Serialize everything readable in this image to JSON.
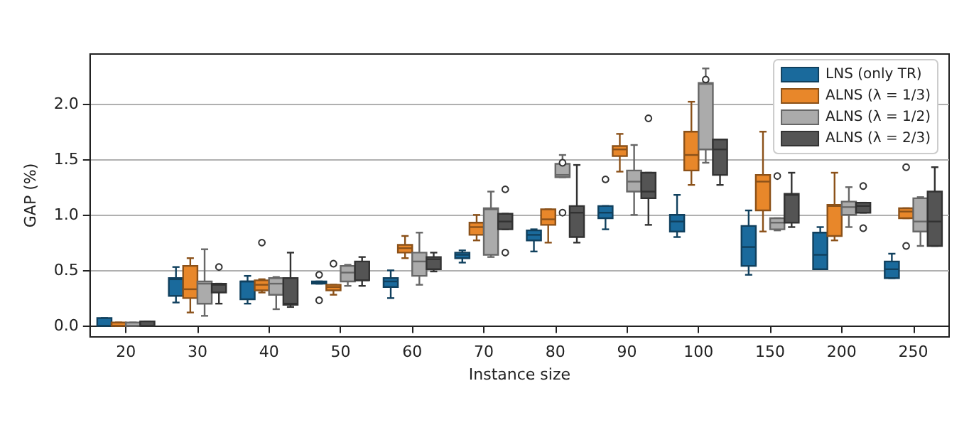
{
  "chart_data": {
    "type": "box",
    "xlabel": "Instance size",
    "ylabel": "GAP (%)",
    "categories": [
      "20",
      "30",
      "40",
      "50",
      "60",
      "70",
      "80",
      "90",
      "100",
      "150",
      "200",
      "250"
    ],
    "ylim": [
      -0.1,
      2.45
    ],
    "yticks": [
      {
        "value": 0,
        "label": "0.0"
      },
      0.5,
      {
        "value": 1,
        "label": "1.0"
      },
      1.5,
      {
        "value": 2,
        "label": "2.0"
      }
    ],
    "grid": "y",
    "legend": "top right",
    "series": [
      {
        "name": "LNS (only TR)",
        "color": "#1a6a9c",
        "boxes": [
          {
            "low": 0,
            "q1": 0,
            "median": 0,
            "q3": 0.07,
            "high": 0.07
          },
          {
            "low": 0.21,
            "q1": 0.27,
            "median": 0.42,
            "q3": 0.43,
            "high": 0.53
          },
          {
            "low": 0.2,
            "q1": 0.24,
            "median": 0.4,
            "q3": 0.4,
            "high": 0.45
          },
          {
            "low": 0.38,
            "q1": 0.38,
            "median": 0.39,
            "q3": 0.4,
            "high": 0.4,
            "outliers": [
              0.46,
              0.23
            ]
          },
          {
            "low": 0.25,
            "q1": 0.35,
            "median": 0.4,
            "q3": 0.43,
            "high": 0.5
          },
          {
            "low": 0.57,
            "q1": 0.61,
            "median": 0.64,
            "q3": 0.66,
            "high": 0.68
          },
          {
            "low": 0.67,
            "q1": 0.77,
            "median": 0.82,
            "q3": 0.86,
            "high": 0.87
          },
          {
            "low": 0.87,
            "q1": 0.97,
            "median": 1.02,
            "q3": 1.08,
            "high": 1.08,
            "outliers": [
              1.32
            ]
          },
          {
            "low": 0.8,
            "q1": 0.85,
            "median": 0.94,
            "q3": 1.0,
            "high": 1.18
          },
          {
            "low": 0.46,
            "q1": 0.54,
            "median": 0.71,
            "q3": 0.9,
            "high": 1.04
          },
          {
            "low": 0.51,
            "q1": 0.51,
            "median": 0.64,
            "q3": 0.84,
            "high": 0.89
          },
          {
            "low": 0.43,
            "q1": 0.43,
            "median": 0.51,
            "q3": 0.58,
            "high": 0.65
          }
        ]
      },
      {
        "name": "ALNS (λ = 1/3)",
        "color": "#e8872a",
        "boxes": [
          {
            "low": 0,
            "q1": 0,
            "median": 0,
            "q3": 0.03,
            "high": 0.03
          },
          {
            "low": 0.12,
            "q1": 0.25,
            "median": 0.33,
            "q3": 0.54,
            "high": 0.61
          },
          {
            "low": 0.3,
            "q1": 0.32,
            "median": 0.37,
            "q3": 0.41,
            "high": 0.42,
            "outliers": [
              0.75
            ]
          },
          {
            "low": 0.28,
            "q1": 0.32,
            "median": 0.35,
            "q3": 0.37,
            "high": 0.37,
            "outliers": [
              0.56
            ]
          },
          {
            "low": 0.61,
            "q1": 0.66,
            "median": 0.7,
            "q3": 0.73,
            "high": 0.81
          },
          {
            "low": 0.77,
            "q1": 0.82,
            "median": 0.89,
            "q3": 0.93,
            "high": 1.0
          },
          {
            "low": 0.75,
            "q1": 0.91,
            "median": 0.96,
            "q3": 1.05,
            "high": 1.05
          },
          {
            "low": 1.39,
            "q1": 1.53,
            "median": 1.59,
            "q3": 1.62,
            "high": 1.73
          },
          {
            "low": 1.27,
            "q1": 1.4,
            "median": 1.54,
            "q3": 1.75,
            "high": 2.02
          },
          {
            "low": 0.85,
            "q1": 1.04,
            "median": 1.3,
            "q3": 1.36,
            "high": 1.75
          },
          {
            "low": 0.77,
            "q1": 0.81,
            "median": 1.08,
            "q3": 1.09,
            "high": 1.38
          },
          {
            "low": 0.97,
            "q1": 0.97,
            "median": 1.03,
            "q3": 1.06,
            "high": 1.06,
            "outliers": [
              1.43,
              0.72
            ]
          }
        ]
      },
      {
        "name": "ALNS (λ = 1/2)",
        "color": "#ababab",
        "boxes": [
          {
            "low": 0,
            "q1": 0,
            "median": 0,
            "q3": 0.03,
            "high": 0.03
          },
          {
            "low": 0.09,
            "q1": 0.2,
            "median": 0.38,
            "q3": 0.4,
            "high": 0.69
          },
          {
            "low": 0.15,
            "q1": 0.28,
            "median": 0.38,
            "q3": 0.43,
            "high": 0.44
          },
          {
            "low": 0.36,
            "q1": 0.4,
            "median": 0.48,
            "q3": 0.54,
            "high": 0.55
          },
          {
            "low": 0.37,
            "q1": 0.45,
            "median": 0.58,
            "q3": 0.66,
            "high": 0.84
          },
          {
            "low": 0.62,
            "q1": 0.64,
            "median": 1.05,
            "q3": 1.06,
            "high": 1.21
          },
          {
            "low": 1.34,
            "q1": 1.34,
            "median": 1.36,
            "q3": 1.46,
            "high": 1.54,
            "outliers": [
              1.47,
              1.02
            ]
          },
          {
            "low": 1.0,
            "q1": 1.21,
            "median": 1.3,
            "q3": 1.4,
            "high": 1.63
          },
          {
            "low": 1.47,
            "q1": 1.59,
            "median": 2.18,
            "q3": 2.19,
            "high": 2.32,
            "outliers": [
              2.22
            ]
          },
          {
            "low": 0.86,
            "q1": 0.87,
            "median": 0.93,
            "q3": 0.97,
            "high": 0.97,
            "outliers": [
              1.35
            ]
          },
          {
            "low": 0.89,
            "q1": 1.0,
            "median": 1.07,
            "q3": 1.12,
            "high": 1.25
          },
          {
            "low": 0.72,
            "q1": 0.85,
            "median": 0.94,
            "q3": 1.15,
            "high": 1.16
          }
        ]
      },
      {
        "name": "ALNS (λ = 2/3)",
        "color": "#545454",
        "boxes": [
          {
            "low": 0,
            "q1": 0,
            "median": 0,
            "q3": 0.04,
            "high": 0.04
          },
          {
            "low": 0.2,
            "q1": 0.3,
            "median": 0.37,
            "q3": 0.38,
            "high": 0.38,
            "outliers": [
              0.53
            ]
          },
          {
            "low": 0.17,
            "q1": 0.19,
            "median": 0.2,
            "q3": 0.43,
            "high": 0.66
          },
          {
            "low": 0.36,
            "q1": 0.41,
            "median": 0.41,
            "q3": 0.58,
            "high": 0.62
          },
          {
            "low": 0.49,
            "q1": 0.51,
            "median": 0.6,
            "q3": 0.62,
            "high": 0.66
          },
          {
            "low": 0.87,
            "q1": 0.87,
            "median": 0.94,
            "q3": 1.01,
            "high": 1.01,
            "outliers": [
              1.23,
              0.66
            ]
          },
          {
            "low": 0.75,
            "q1": 0.8,
            "median": 1.02,
            "q3": 1.08,
            "high": 1.45
          },
          {
            "low": 0.91,
            "q1": 1.15,
            "median": 1.21,
            "q3": 1.38,
            "high": 1.38,
            "outliers": [
              1.87
            ]
          },
          {
            "low": 1.27,
            "q1": 1.36,
            "median": 1.59,
            "q3": 1.68,
            "high": 1.68
          },
          {
            "low": 0.89,
            "q1": 0.93,
            "median": 1.18,
            "q3": 1.19,
            "high": 1.38
          },
          {
            "low": 1.02,
            "q1": 1.02,
            "median": 1.08,
            "q3": 1.11,
            "high": 1.11,
            "outliers": [
              1.26,
              0.88
            ]
          },
          {
            "low": 0.72,
            "q1": 0.72,
            "median": 0.94,
            "q3": 1.21,
            "high": 1.43
          }
        ]
      }
    ]
  }
}
